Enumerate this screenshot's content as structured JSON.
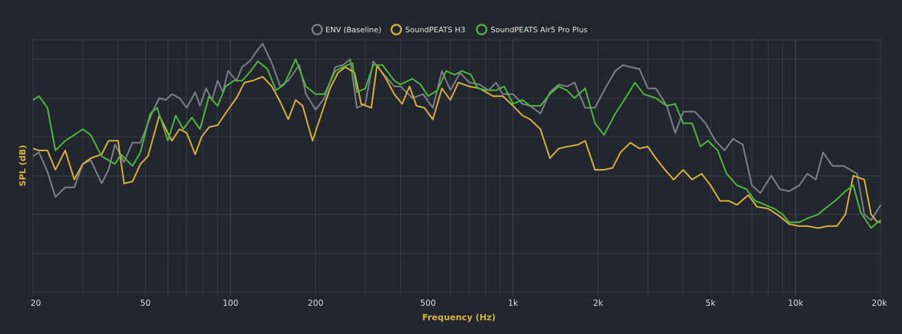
{
  "colors": {
    "background": "#23262e",
    "grid": "#3b3f47",
    "grid_major": "#4a4e57",
    "tick_text": "#dcdcdc",
    "axis_title": "#d4b13a"
  },
  "chart_data": {
    "type": "line",
    "title": "",
    "xlabel": "Frequency (Hz)",
    "ylabel": "SPL (dB)",
    "xscale": "log",
    "xlim": [
      20,
      20000
    ],
    "ylim": [
      0,
      130
    ],
    "grid": true,
    "legend_position": "top-center",
    "xticks": [
      {
        "value": 20,
        "label": "20"
      },
      {
        "value": 50,
        "label": "50"
      },
      {
        "value": 100,
        "label": "100"
      },
      {
        "value": 200,
        "label": "200"
      },
      {
        "value": 500,
        "label": "500"
      },
      {
        "value": 1000,
        "label": "1k"
      },
      {
        "value": 2000,
        "label": "2k"
      },
      {
        "value": 5000,
        "label": "5k"
      },
      {
        "value": 10000,
        "label": "10k"
      },
      {
        "value": 20000,
        "label": "20k"
      }
    ],
    "series": [
      {
        "name": "ENV (Baseline)",
        "color": "#7c7f87",
        "points": [
          [
            20,
            70
          ],
          [
            21,
            72
          ],
          [
            22.5,
            62
          ],
          [
            24,
            49
          ],
          [
            26,
            54
          ],
          [
            28,
            54
          ],
          [
            30,
            66
          ],
          [
            32,
            68
          ],
          [
            35,
            56
          ],
          [
            37,
            63
          ],
          [
            39,
            76
          ],
          [
            42,
            67
          ],
          [
            45,
            77
          ],
          [
            48,
            77
          ],
          [
            53,
            93
          ],
          [
            56,
            100
          ],
          [
            59,
            99
          ],
          [
            62,
            102
          ],
          [
            66,
            100
          ],
          [
            70,
            95
          ],
          [
            75,
            103
          ],
          [
            78,
            96
          ],
          [
            82,
            105
          ],
          [
            86,
            99
          ],
          [
            90,
            109
          ],
          [
            94,
            103
          ],
          [
            98,
            114
          ],
          [
            105,
            109
          ],
          [
            110,
            116
          ],
          [
            117,
            119
          ],
          [
            125,
            125
          ],
          [
            130,
            128
          ],
          [
            140,
            118
          ],
          [
            150,
            106
          ],
          [
            160,
            109
          ],
          [
            175,
            117
          ],
          [
            185,
            102
          ],
          [
            200,
            94
          ],
          [
            215,
            100
          ],
          [
            235,
            116
          ],
          [
            250,
            117
          ],
          [
            265,
            120
          ],
          [
            280,
            95
          ],
          [
            300,
            97
          ],
          [
            320,
            119
          ],
          [
            345,
            113
          ],
          [
            380,
            106
          ],
          [
            400,
            106
          ],
          [
            440,
            100
          ],
          [
            480,
            102
          ],
          [
            520,
            95
          ],
          [
            560,
            114
          ],
          [
            600,
            104
          ],
          [
            650,
            113
          ],
          [
            700,
            108
          ],
          [
            760,
            107
          ],
          [
            820,
            104
          ],
          [
            870,
            108
          ],
          [
            920,
            102
          ],
          [
            1000,
            102
          ],
          [
            1080,
            97
          ],
          [
            1150,
            96
          ],
          [
            1250,
            92
          ],
          [
            1350,
            103
          ],
          [
            1450,
            107
          ],
          [
            1550,
            106
          ],
          [
            1650,
            108
          ],
          [
            1800,
            95
          ],
          [
            1950,
            95
          ],
          [
            2100,
            104
          ],
          [
            2300,
            114
          ],
          [
            2450,
            117
          ],
          [
            2600,
            116
          ],
          [
            2800,
            115
          ],
          [
            3000,
            105
          ],
          [
            3200,
            105
          ],
          [
            3500,
            96
          ],
          [
            3750,
            82
          ],
          [
            4000,
            93
          ],
          [
            4400,
            93
          ],
          [
            4800,
            87
          ],
          [
            5200,
            78
          ],
          [
            5600,
            73
          ],
          [
            6000,
            79
          ],
          [
            6500,
            76
          ],
          [
            7000,
            55
          ],
          [
            7500,
            51
          ],
          [
            8200,
            60
          ],
          [
            8800,
            53
          ],
          [
            9500,
            52
          ],
          [
            10300,
            55
          ],
          [
            11000,
            61
          ],
          [
            11800,
            58
          ],
          [
            12500,
            72
          ],
          [
            13500,
            65
          ],
          [
            14800,
            65
          ],
          [
            16500,
            61
          ],
          [
            17500,
            40
          ],
          [
            18500,
            37
          ],
          [
            20000,
            45
          ]
        ]
      },
      {
        "name": "SoundPEATS H3",
        "color": "#d4b13a",
        "points": [
          [
            20,
            74
          ],
          [
            21,
            73
          ],
          [
            22.5,
            73
          ],
          [
            24,
            63
          ],
          [
            26,
            73
          ],
          [
            28,
            58
          ],
          [
            30,
            66
          ],
          [
            32,
            69
          ],
          [
            35,
            71
          ],
          [
            37,
            78
          ],
          [
            40,
            78
          ],
          [
            42,
            56
          ],
          [
            45,
            57
          ],
          [
            48,
            66
          ],
          [
            51,
            70
          ],
          [
            56,
            91
          ],
          [
            60,
            82
          ],
          [
            62,
            78
          ],
          [
            66,
            84
          ],
          [
            70,
            82
          ],
          [
            75,
            71
          ],
          [
            79,
            80
          ],
          [
            84,
            85
          ],
          [
            90,
            86
          ],
          [
            98,
            94
          ],
          [
            105,
            100
          ],
          [
            112,
            108
          ],
          [
            120,
            109
          ],
          [
            130,
            111
          ],
          [
            140,
            106
          ],
          [
            150,
            98
          ],
          [
            160,
            89
          ],
          [
            170,
            99
          ],
          [
            180,
            96
          ],
          [
            195,
            78
          ],
          [
            210,
            92
          ],
          [
            225,
            105
          ],
          [
            240,
            113
          ],
          [
            255,
            116
          ],
          [
            275,
            113
          ],
          [
            290,
            97
          ],
          [
            315,
            95
          ],
          [
            330,
            117
          ],
          [
            355,
            110
          ],
          [
            380,
            102
          ],
          [
            405,
            97
          ],
          [
            430,
            106
          ],
          [
            455,
            96
          ],
          [
            485,
            95
          ],
          [
            520,
            89
          ],
          [
            560,
            105
          ],
          [
            600,
            99
          ],
          [
            640,
            108
          ],
          [
            700,
            106
          ],
          [
            760,
            105
          ],
          [
            850,
            101
          ],
          [
            920,
            101
          ],
          [
            1000,
            96
          ],
          [
            1080,
            91
          ],
          [
            1150,
            89
          ],
          [
            1250,
            84
          ],
          [
            1350,
            69
          ],
          [
            1450,
            74
          ],
          [
            1560,
            75
          ],
          [
            1700,
            76
          ],
          [
            1800,
            78
          ],
          [
            1950,
            63
          ],
          [
            2100,
            63
          ],
          [
            2250,
            64
          ],
          [
            2400,
            72
          ],
          [
            2600,
            77
          ],
          [
            2800,
            74
          ],
          [
            3000,
            75
          ],
          [
            3200,
            69
          ],
          [
            3450,
            63
          ],
          [
            3700,
            58
          ],
          [
            4000,
            63
          ],
          [
            4300,
            58
          ],
          [
            4650,
            61
          ],
          [
            5000,
            55
          ],
          [
            5400,
            47
          ],
          [
            5800,
            47
          ],
          [
            6200,
            45
          ],
          [
            6800,
            50
          ],
          [
            7300,
            44
          ],
          [
            8000,
            43
          ],
          [
            8800,
            39
          ],
          [
            9500,
            35
          ],
          [
            10300,
            34
          ],
          [
            11000,
            34
          ],
          [
            12000,
            33
          ],
          [
            13000,
            34
          ],
          [
            14000,
            34
          ],
          [
            15000,
            40
          ],
          [
            16000,
            60
          ],
          [
            17500,
            58
          ],
          [
            18500,
            40
          ],
          [
            19500,
            36
          ],
          [
            20000,
            36
          ]
        ]
      },
      {
        "name": "SoundPEATS Air5 Pro Plus",
        "color": "#4db63e",
        "points": [
          [
            20,
            99
          ],
          [
            21,
            101
          ],
          [
            22.5,
            95
          ],
          [
            24,
            73
          ],
          [
            26,
            78
          ],
          [
            28,
            81
          ],
          [
            30,
            84
          ],
          [
            32,
            81
          ],
          [
            35,
            70
          ],
          [
            37,
            68
          ],
          [
            39,
            66
          ],
          [
            41,
            71
          ],
          [
            45,
            65
          ],
          [
            48,
            72
          ],
          [
            52,
            92
          ],
          [
            55,
            95
          ],
          [
            60,
            78
          ],
          [
            64,
            91
          ],
          [
            68,
            84
          ],
          [
            73,
            90
          ],
          [
            78,
            84
          ],
          [
            84,
            101
          ],
          [
            90,
            96
          ],
          [
            96,
            106
          ],
          [
            103,
            109
          ],
          [
            110,
            109
          ],
          [
            118,
            114
          ],
          [
            125,
            119
          ],
          [
            135,
            115
          ],
          [
            145,
            104
          ],
          [
            155,
            107
          ],
          [
            170,
            120
          ],
          [
            185,
            106
          ],
          [
            200,
            102
          ],
          [
            215,
            102
          ],
          [
            235,
            114
          ],
          [
            250,
            116
          ],
          [
            270,
            118
          ],
          [
            280,
            103
          ],
          [
            300,
            105
          ],
          [
            320,
            117
          ],
          [
            345,
            117
          ],
          [
            380,
            109
          ],
          [
            400,
            107
          ],
          [
            440,
            110
          ],
          [
            470,
            107
          ],
          [
            500,
            101
          ],
          [
            540,
            104
          ],
          [
            580,
            114
          ],
          [
            620,
            112
          ],
          [
            660,
            114
          ],
          [
            710,
            112
          ],
          [
            750,
            105
          ],
          [
            810,
            104
          ],
          [
            870,
            104
          ],
          [
            930,
            106
          ],
          [
            1000,
            97
          ],
          [
            1080,
            99
          ],
          [
            1150,
            96
          ],
          [
            1250,
            96
          ],
          [
            1350,
            102
          ],
          [
            1450,
            106
          ],
          [
            1550,
            104
          ],
          [
            1650,
            100
          ],
          [
            1800,
            105
          ],
          [
            1950,
            87
          ],
          [
            2100,
            81
          ],
          [
            2300,
            92
          ],
          [
            2500,
            100
          ],
          [
            2700,
            108
          ],
          [
            2900,
            102
          ],
          [
            3200,
            100
          ],
          [
            3500,
            96
          ],
          [
            3750,
            97
          ],
          [
            4000,
            87
          ],
          [
            4300,
            87
          ],
          [
            4600,
            75
          ],
          [
            4900,
            78
          ],
          [
            5300,
            73
          ],
          [
            5700,
            61
          ],
          [
            6200,
            55
          ],
          [
            6700,
            53
          ],
          [
            7200,
            47
          ],
          [
            7800,
            45
          ],
          [
            8400,
            43
          ],
          [
            9000,
            40
          ],
          [
            9500,
            36
          ],
          [
            10300,
            36
          ],
          [
            11000,
            38
          ],
          [
            12000,
            40
          ],
          [
            12700,
            43
          ],
          [
            13800,
            47
          ],
          [
            15000,
            52
          ],
          [
            16000,
            55
          ],
          [
            17000,
            41
          ],
          [
            18500,
            33
          ],
          [
            19500,
            36
          ],
          [
            20000,
            37
          ]
        ]
      }
    ]
  }
}
